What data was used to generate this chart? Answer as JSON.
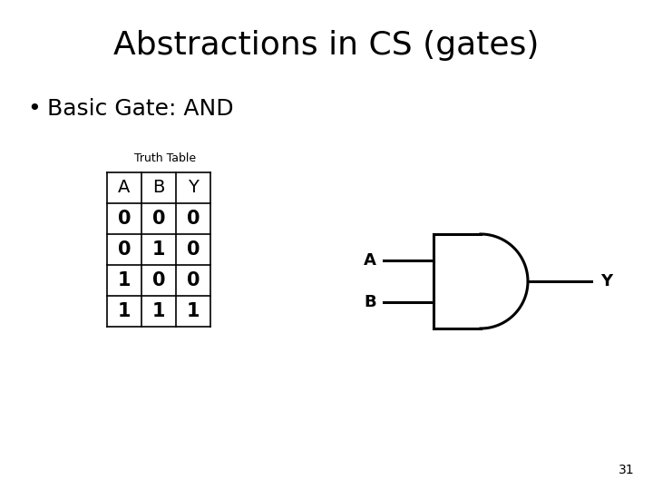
{
  "title": "Abstractions in CS (gates)",
  "bullet": "Basic Gate: AND",
  "truth_table_label": "Truth Table",
  "table_headers": [
    "A",
    "B",
    "Y"
  ],
  "table_rows": [
    [
      "0",
      "0",
      "0"
    ],
    [
      "0",
      "1",
      "0"
    ],
    [
      "1",
      "0",
      "0"
    ],
    [
      "1",
      "1",
      "1"
    ]
  ],
  "gate_input_a": "A",
  "gate_input_b": "B",
  "gate_output": "Y",
  "slide_number": "31",
  "bg_color": "#ffffff",
  "text_color": "#000000",
  "title_fontsize": 26,
  "bullet_fontsize": 18,
  "table_label_fontsize": 9,
  "table_fontsize": 14,
  "gate_label_fontsize": 13,
  "slide_num_fontsize": 10
}
